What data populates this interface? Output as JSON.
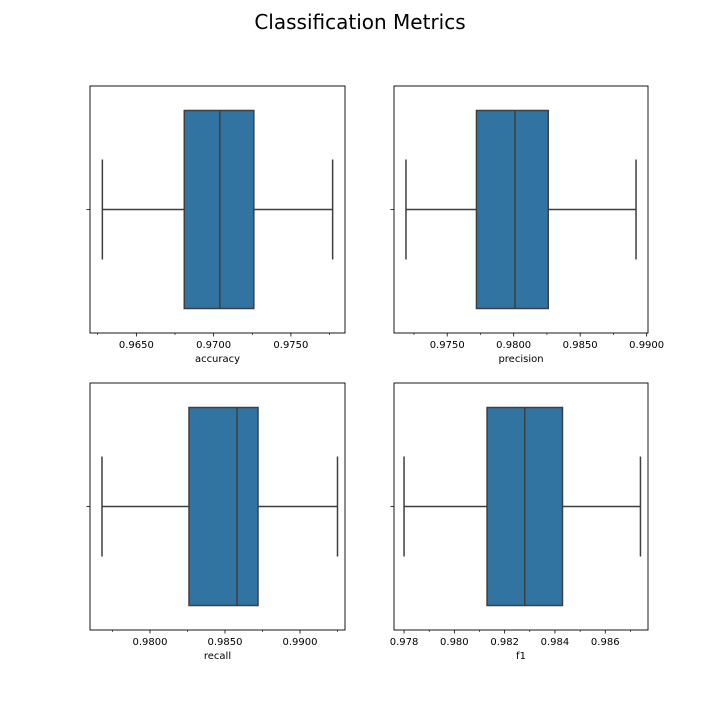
{
  "figure": {
    "title": "Classification Metrics"
  },
  "chart_data": [
    {
      "type": "box",
      "xlabel": "accuracy",
      "xlim": [
        0.962,
        0.9785
      ],
      "ticks": [
        0.965,
        0.97,
        0.975
      ],
      "tick_labels": [
        "0.9650",
        "0.9700",
        "0.9750"
      ],
      "minor_ticks": [
        0.9625,
        0.9675,
        0.9725,
        0.9775
      ],
      "stats": {
        "whislo": 0.9628,
        "q1": 0.9681,
        "med": 0.9704,
        "q3": 0.9726,
        "whishi": 0.9777
      },
      "color": "#3274a1"
    },
    {
      "type": "box",
      "xlabel": "precision",
      "xlim": [
        0.971,
        0.9901
      ],
      "ticks": [
        0.975,
        0.98,
        0.985,
        0.99
      ],
      "tick_labels": [
        "0.9750",
        "0.9800",
        "0.9850",
        "0.9900"
      ],
      "minor_ticks": [
        0.9725,
        0.9775,
        0.9825,
        0.9875
      ],
      "stats": {
        "whislo": 0.9719,
        "q1": 0.9772,
        "med": 0.9801,
        "q3": 0.9826,
        "whishi": 0.9892
      },
      "color": "#3274a1"
    },
    {
      "type": "box",
      "xlabel": "recall",
      "xlim": [
        0.976,
        0.993
      ],
      "ticks": [
        0.98,
        0.985,
        0.99
      ],
      "tick_labels": [
        "0.9800",
        "0.9850",
        "0.9900"
      ],
      "minor_ticks": [
        0.9775,
        0.9825,
        0.9875,
        0.9925
      ],
      "stats": {
        "whislo": 0.9768,
        "q1": 0.9826,
        "med": 0.9858,
        "q3": 0.9872,
        "whishi": 0.9925
      },
      "color": "#3274a1"
    },
    {
      "type": "box",
      "xlabel": "f1",
      "xlim": [
        0.9776,
        0.9877
      ],
      "ticks": [
        0.978,
        0.98,
        0.982,
        0.984,
        0.986
      ],
      "tick_labels": [
        "0.978",
        "0.980",
        "0.982",
        "0.984",
        "0.986"
      ],
      "minor_ticks": [
        0.979,
        0.981,
        0.983,
        0.985,
        0.987
      ],
      "stats": {
        "whislo": 0.978,
        "q1": 0.9813,
        "med": 0.9828,
        "q3": 0.9843,
        "whishi": 0.9874
      },
      "color": "#3274a1"
    }
  ]
}
